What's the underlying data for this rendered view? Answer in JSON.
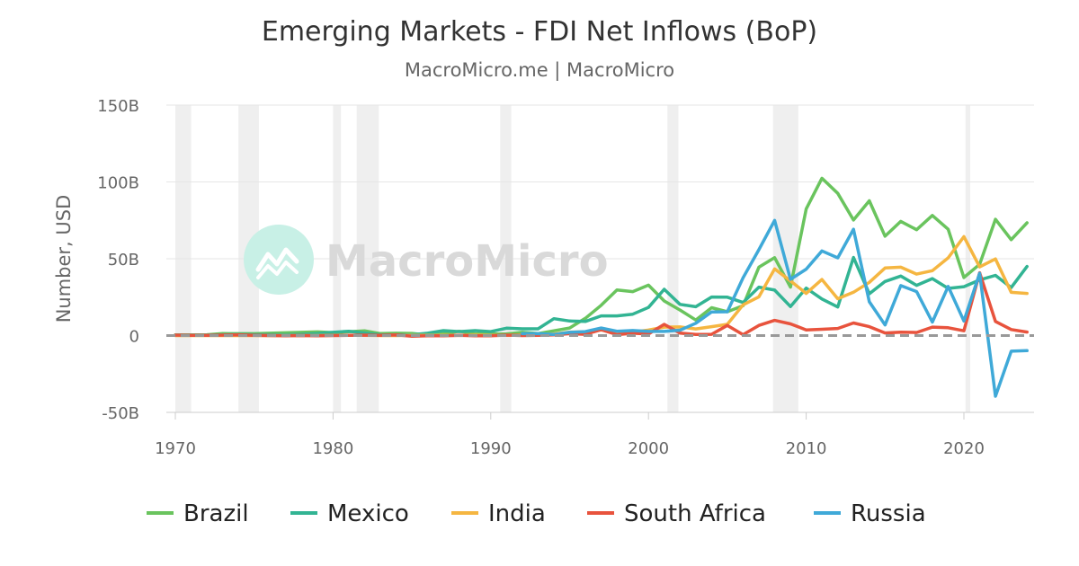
{
  "chart_data": {
    "type": "line",
    "title": "Emerging Markets - FDI Net Inflows (BoP)",
    "subtitle": "MacroMicro.me | MacroMicro",
    "ylabel": "Number, USD",
    "xlabel": "",
    "xlim": [
      1970,
      2024.5
    ],
    "ylim": [
      -50,
      150
    ],
    "x_ticks": [
      1970,
      1980,
      1990,
      2000,
      2010,
      2020
    ],
    "y_ticks": [
      {
        "value": 150,
        "label": "150B"
      },
      {
        "value": 100,
        "label": "100B"
      },
      {
        "value": 50,
        "label": "50B"
      },
      {
        "value": 0,
        "label": "0"
      },
      {
        "value": -50,
        "label": "-50B"
      }
    ],
    "units": "billion USD",
    "shaded_periods": [
      [
        1970,
        1971
      ],
      [
        1974,
        1975.3
      ],
      [
        1980,
        1980.5
      ],
      [
        1981.5,
        1982.9
      ],
      [
        1990.6,
        1991.3
      ],
      [
        2001.2,
        2001.9
      ],
      [
        2007.9,
        2009.5
      ],
      [
        2020.1,
        2020.4
      ]
    ],
    "zero_line": "dashed",
    "watermark": "MacroMicro",
    "legend_position": "bottom",
    "x": [
      1970,
      1971,
      1972,
      1973,
      1974,
      1975,
      1976,
      1977,
      1978,
      1979,
      1980,
      1981,
      1982,
      1983,
      1984,
      1985,
      1986,
      1987,
      1988,
      1989,
      1990,
      1991,
      1992,
      1993,
      1994,
      1995,
      1996,
      1997,
      1998,
      1999,
      2000,
      2001,
      2002,
      2003,
      2004,
      2005,
      2006,
      2007,
      2008,
      2009,
      2010,
      2011,
      2012,
      2013,
      2014,
      2015,
      2016,
      2017,
      2018,
      2019,
      2020,
      2021,
      2022,
      2023,
      2024
    ],
    "series": [
      {
        "name": "Brazil",
        "color": "#6ac45e",
        "values": [
          0.4,
          0.4,
          0.5,
          1.3,
          1.2,
          1.2,
          1.5,
          1.8,
          2.1,
          2.4,
          1.9,
          2.5,
          3.1,
          1.3,
          1.5,
          1.4,
          0.3,
          1.2,
          2.8,
          1.1,
          1.0,
          1.1,
          2.1,
          1.3,
          3.1,
          4.9,
          11.2,
          19.7,
          29.7,
          28.6,
          32.8,
          22.5,
          16.6,
          10.1,
          18.1,
          15.5,
          19.4,
          44.5,
          50.7,
          31.5,
          82.4,
          102.4,
          92.6,
          75.2,
          87.7,
          64.7,
          74.3,
          68.9,
          78.2,
          69.2,
          37.8,
          46.4,
          75.7,
          62.4,
          73.4
        ]
      },
      {
        "name": "Mexico",
        "color": "#32b493",
        "values": [
          0.3,
          0.3,
          0.3,
          0.5,
          0.7,
          0.6,
          0.6,
          0.6,
          0.8,
          1.3,
          2.1,
          2.8,
          1.7,
          0.5,
          0.4,
          0.5,
          1.5,
          3.2,
          2.6,
          3.2,
          2.6,
          4.8,
          4.4,
          4.4,
          11.0,
          9.5,
          9.2,
          12.8,
          12.8,
          13.9,
          18.3,
          30.1,
          20.3,
          18.8,
          25.1,
          25.0,
          21.5,
          31.5,
          29.6,
          18.9,
          30.9,
          23.8,
          18.6,
          50.8,
          27.2,
          35.2,
          38.7,
          32.7,
          37.1,
          30.7,
          31.8,
          36.2,
          39.2,
          31.2,
          45.0
        ]
      },
      {
        "name": "India",
        "color": "#f5b641",
        "values": [
          0.0,
          0.0,
          0.0,
          0.0,
          0.0,
          0.0,
          0.0,
          0.0,
          0.0,
          0.0,
          0.1,
          0.1,
          0.1,
          0.0,
          0.0,
          0.1,
          0.1,
          0.2,
          0.1,
          0.3,
          0.2,
          0.1,
          0.3,
          0.6,
          1.0,
          2.2,
          2.4,
          3.6,
          2.6,
          2.2,
          3.6,
          5.5,
          5.6,
          4.3,
          5.8,
          7.3,
          20.0,
          25.2,
          43.4,
          35.6,
          27.4,
          36.5,
          24.0,
          28.2,
          34.6,
          44.0,
          44.5,
          40.0,
          42.2,
          50.6,
          64.4,
          44.7,
          49.9,
          28.1,
          27.4
        ]
      },
      {
        "name": "South Africa",
        "color": "#e8533d",
        "values": [
          0.3,
          0.2,
          0.2,
          0.3,
          0.5,
          0.2,
          0.0,
          -0.1,
          0.0,
          -0.1,
          0.0,
          0.1,
          0.3,
          0.1,
          0.4,
          -0.4,
          -0.1,
          -0.1,
          0.1,
          -0.1,
          -0.1,
          0.3,
          0.0,
          0.1,
          0.4,
          1.2,
          0.8,
          3.8,
          0.6,
          1.5,
          1.0,
          7.3,
          1.6,
          0.7,
          0.8,
          6.6,
          0.6,
          6.6,
          9.9,
          7.6,
          3.7,
          4.1,
          4.6,
          8.2,
          5.8,
          1.7,
          2.2,
          2.0,
          5.5,
          5.1,
          3.1,
          40.9,
          9.2,
          3.9,
          2.3
        ]
      },
      {
        "name": "Russia",
        "color": "#3fa9d8",
        "values": [
          null,
          null,
          null,
          null,
          null,
          null,
          null,
          null,
          null,
          null,
          null,
          null,
          null,
          null,
          null,
          null,
          null,
          null,
          null,
          null,
          null,
          null,
          1.2,
          1.2,
          0.7,
          2.1,
          2.6,
          4.9,
          2.8,
          3.3,
          2.7,
          2.7,
          3.5,
          8.0,
          15.4,
          15.5,
          37.6,
          55.9,
          75.0,
          36.6,
          43.2,
          55.1,
          50.6,
          69.2,
          22.0,
          6.9,
          32.5,
          28.6,
          8.8,
          32.0,
          9.5,
          40.5,
          -39.5,
          -10.2,
          -9.8
        ]
      }
    ]
  }
}
